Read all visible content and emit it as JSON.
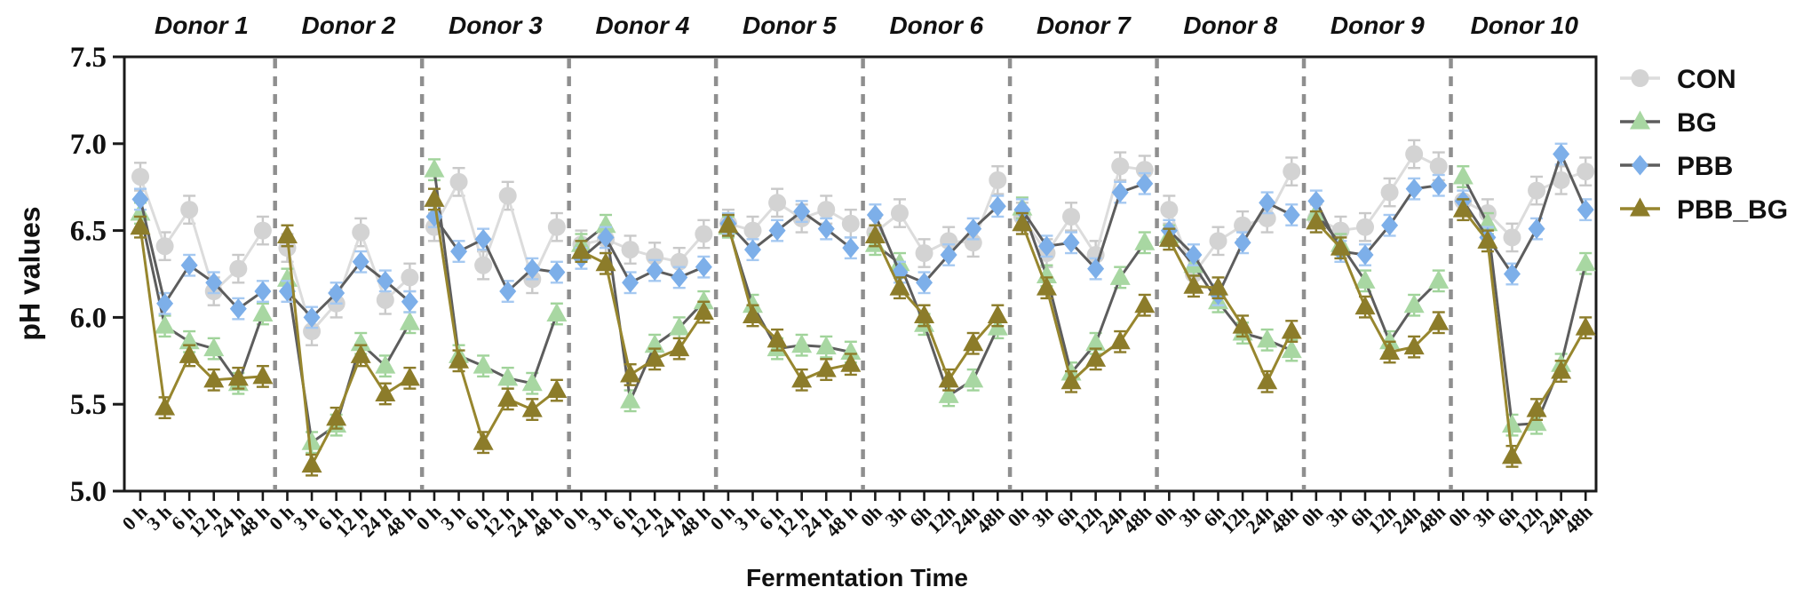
{
  "chart_data": {
    "type": "line",
    "title": "",
    "xlabel": "Fermentation Time",
    "ylabel": "pH values",
    "ylim": [
      5.0,
      7.5
    ],
    "yticks": [
      "7.5",
      "7.0",
      "6.5",
      "6.0",
      "5.5",
      "5.0"
    ],
    "grid": false,
    "legend_position": "right-outside",
    "panel_separator_style": "dashed-gray",
    "series_meta": [
      {
        "name": "CON",
        "marker": "circle",
        "marker_color": "#d3d3d3",
        "line_color": "#dcdcdc",
        "error_color": "#c9c9c9",
        "error": 0.08
      },
      {
        "name": "BG",
        "marker": "triangle-up",
        "marker_color": "#a8d7a2",
        "line_color": "#5d5d5d",
        "error_color": "#a0d39a",
        "error": 0.06
      },
      {
        "name": "PBB",
        "marker": "diamond",
        "marker_color": "#7dafe9",
        "line_color": "#5d5d5d",
        "error_color": "#a6c9f1",
        "error": 0.06
      },
      {
        "name": "PBB_BG",
        "marker": "triangle-up",
        "marker_color": "#8c7c2a",
        "line_color": "#97862e",
        "error_color": "#8c7c2a",
        "error": 0.06
      }
    ],
    "panels": [
      {
        "title": "Donor 1",
        "categories": [
          "0 h",
          "3 h",
          "6 h",
          "12 h",
          "24 h",
          "48 h"
        ],
        "series": {
          "CON": [
            6.81,
            6.41,
            6.62,
            6.15,
            6.28,
            6.5
          ],
          "BG": [
            6.6,
            5.95,
            5.86,
            5.82,
            5.62,
            6.02
          ],
          "PBB": [
            6.68,
            6.08,
            6.3,
            6.2,
            6.05,
            6.15
          ],
          "PBB_BG": [
            6.52,
            5.48,
            5.78,
            5.64,
            5.65,
            5.66
          ]
        }
      },
      {
        "title": "Donor 2",
        "categories": [
          "0 h",
          "3 h",
          "6 h",
          "12 h",
          "24 h",
          "48 h"
        ],
        "series": {
          "CON": [
            6.4,
            5.92,
            6.08,
            6.49,
            6.1,
            6.23
          ],
          "BG": [
            6.22,
            5.28,
            5.38,
            5.85,
            5.72,
            5.97
          ],
          "PBB": [
            6.15,
            6.0,
            6.14,
            6.32,
            6.21,
            6.09
          ],
          "PBB_BG": [
            6.47,
            5.15,
            5.42,
            5.78,
            5.56,
            5.65
          ]
        }
      },
      {
        "title": "Donor 3",
        "categories": [
          "0 h",
          "3 h",
          "6 h",
          "12 h",
          "24 h",
          "48 h"
        ],
        "series": {
          "CON": [
            6.52,
            6.78,
            6.3,
            6.7,
            6.22,
            6.52
          ],
          "BG": [
            6.85,
            5.78,
            5.72,
            5.65,
            5.62,
            6.02
          ],
          "PBB": [
            6.58,
            6.38,
            6.45,
            6.15,
            6.28,
            6.26
          ],
          "PBB_BG": [
            6.68,
            5.75,
            5.28,
            5.53,
            5.47,
            5.58
          ]
        }
      },
      {
        "title": "Donor 4",
        "categories": [
          "0 h",
          "3 h",
          "6 h",
          "12 h",
          "24 h",
          "48 h"
        ],
        "series": {
          "CON": [
            6.42,
            6.45,
            6.39,
            6.35,
            6.32,
            6.48
          ],
          "BG": [
            6.42,
            6.53,
            5.52,
            5.84,
            5.94,
            6.09
          ],
          "PBB": [
            6.34,
            6.46,
            6.2,
            6.27,
            6.23,
            6.29
          ],
          "PBB_BG": [
            6.38,
            6.31,
            5.67,
            5.76,
            5.82,
            6.03
          ]
        }
      },
      {
        "title": "Donor 5",
        "categories": [
          "0 h",
          "3 h",
          "6 h",
          "12 h",
          "24 h",
          "48 h"
        ],
        "series": {
          "CON": [
            6.54,
            6.5,
            6.66,
            6.57,
            6.62,
            6.54
          ],
          "BG": [
            6.52,
            6.07,
            5.82,
            5.84,
            5.83,
            5.8
          ],
          "PBB": [
            6.54,
            6.39,
            6.5,
            6.61,
            6.51,
            6.4
          ],
          "PBB_BG": [
            6.53,
            6.01,
            5.87,
            5.64,
            5.7,
            5.73
          ]
        }
      },
      {
        "title": "Donor 6",
        "categories": [
          "0h",
          "3h",
          "6h",
          "12h",
          "24h",
          "48h"
        ],
        "series": {
          "CON": [
            6.49,
            6.6,
            6.37,
            6.44,
            6.43,
            6.79
          ],
          "BG": [
            6.42,
            6.31,
            5.96,
            5.55,
            5.64,
            5.94
          ],
          "PBB": [
            6.59,
            6.26,
            6.2,
            6.36,
            6.51,
            6.64
          ],
          "PBB_BG": [
            6.47,
            6.17,
            6.01,
            5.64,
            5.85,
            6.01
          ]
        }
      },
      {
        "title": "Donor 7",
        "categories": [
          "0h",
          "3h",
          "6h",
          "12h",
          "24h",
          "48h"
        ],
        "series": {
          "CON": [
            6.58,
            6.37,
            6.58,
            6.36,
            6.87,
            6.85
          ],
          "BG": [
            6.63,
            6.24,
            5.68,
            5.85,
            6.23,
            6.43
          ],
          "PBB": [
            6.62,
            6.41,
            6.43,
            6.28,
            6.72,
            6.77
          ],
          "PBB_BG": [
            6.54,
            6.17,
            5.63,
            5.76,
            5.86,
            6.07
          ]
        }
      },
      {
        "title": "Donor 8",
        "categories": [
          "0h",
          "3h",
          "6h",
          "12h",
          "24h",
          "48h"
        ],
        "series": {
          "CON": [
            6.62,
            6.25,
            6.44,
            6.53,
            6.57,
            6.84
          ],
          "BG": [
            6.47,
            6.3,
            6.09,
            5.91,
            5.87,
            5.81
          ],
          "PBB": [
            6.5,
            6.36,
            6.13,
            6.43,
            6.66,
            6.59
          ],
          "PBB_BG": [
            6.45,
            6.18,
            6.17,
            5.95,
            5.63,
            5.92
          ]
        }
      },
      {
        "title": "Donor 9",
        "categories": [
          "0h",
          "3h",
          "6h",
          "12h",
          "24h",
          "48h"
        ],
        "series": {
          "CON": [
            6.57,
            6.5,
            6.52,
            6.72,
            6.94,
            6.87
          ],
          "BG": [
            6.6,
            6.42,
            6.21,
            5.86,
            6.07,
            6.21
          ],
          "PBB": [
            6.67,
            6.38,
            6.36,
            6.53,
            6.74,
            6.76
          ],
          "PBB_BG": [
            6.55,
            6.4,
            6.06,
            5.8,
            5.83,
            5.97
          ]
        }
      },
      {
        "title": "Donor 10",
        "categories": [
          "0h",
          "3h",
          "6h",
          "12h",
          "24h",
          "48h"
        ],
        "series": {
          "CON": [
            6.67,
            6.6,
            6.46,
            6.73,
            6.79,
            6.84
          ],
          "BG": [
            6.81,
            6.54,
            5.38,
            5.39,
            5.73,
            6.31
          ],
          "PBB": [
            6.67,
            6.46,
            6.25,
            6.51,
            6.94,
            6.62
          ],
          "PBB_BG": [
            6.62,
            6.44,
            5.2,
            5.47,
            5.69,
            5.94
          ]
        }
      }
    ]
  }
}
